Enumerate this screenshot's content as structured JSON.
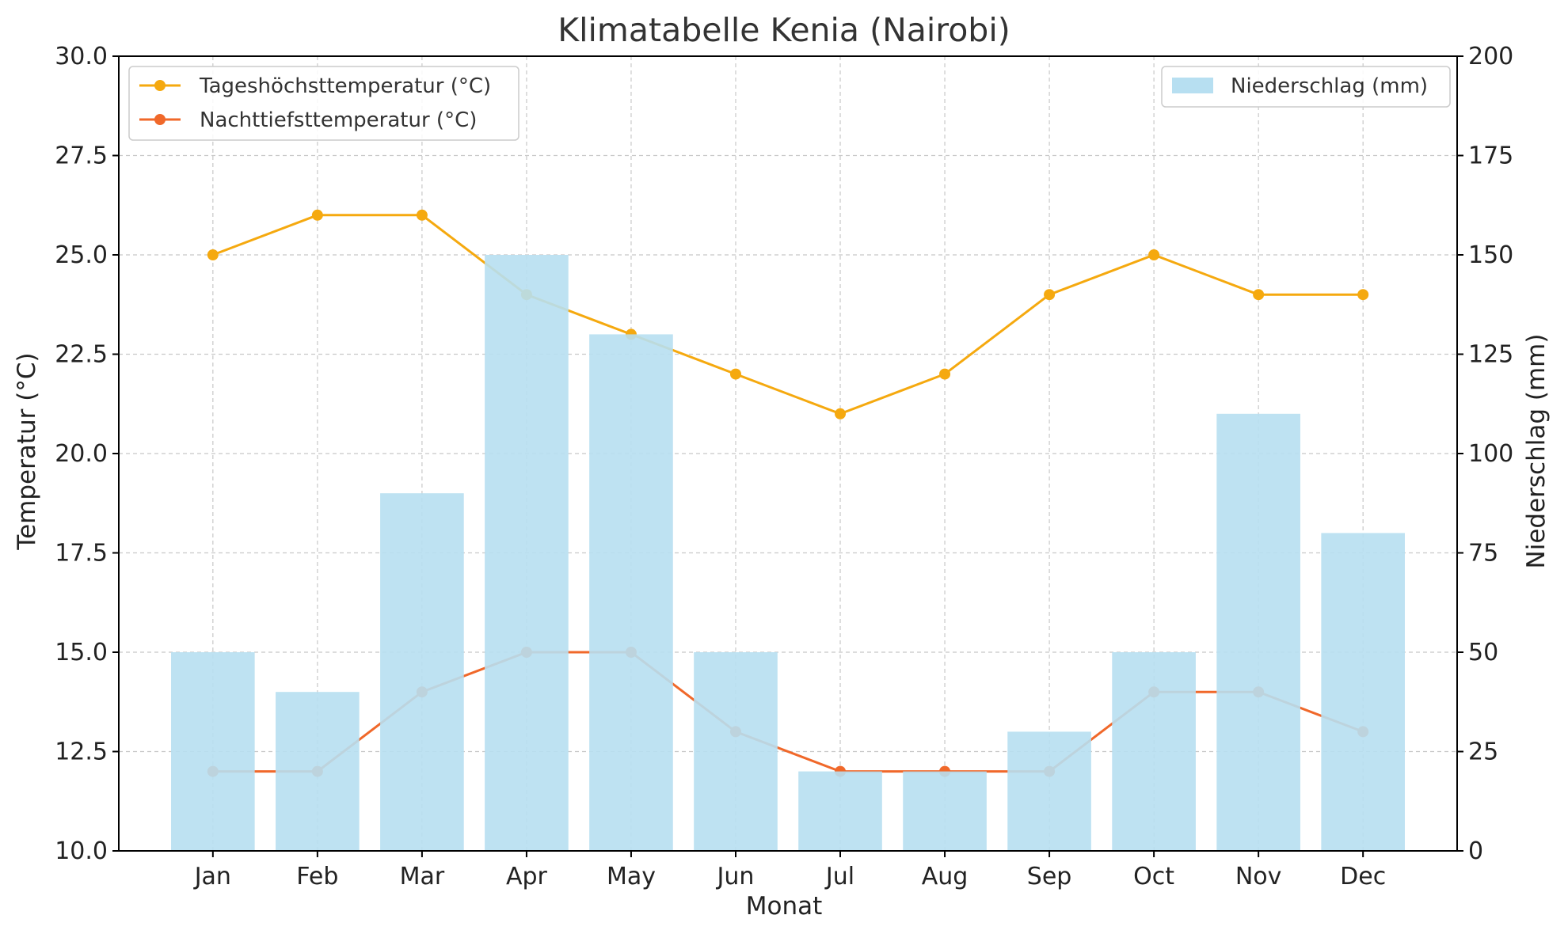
{
  "chart_data": {
    "type": "bar+line",
    "title": "Klimatabelle Kenia (Nairobi)",
    "xlabel": "Monat",
    "ylabel_left": "Temperatur (°C)",
    "ylabel_right": "Niederschlag (mm)",
    "categories": [
      "Jan",
      "Feb",
      "Mar",
      "Apr",
      "May",
      "Jun",
      "Jul",
      "Aug",
      "Sep",
      "Oct",
      "Nov",
      "Dec"
    ],
    "ylim_left": [
      10,
      30
    ],
    "ylim_right": [
      0,
      200
    ],
    "yticks_left": [
      "10.0",
      "12.5",
      "15.0",
      "17.5",
      "20.0",
      "22.5",
      "25.0",
      "27.5",
      "30.0"
    ],
    "yticks_right": [
      "0",
      "25",
      "50",
      "75",
      "100",
      "125",
      "150",
      "175",
      "200"
    ],
    "grid": true,
    "series": [
      {
        "name": "Tageshöchsttemperatur (°C)",
        "type": "line",
        "axis": "left",
        "color": "#f5a90f",
        "values": [
          25,
          26,
          26,
          24,
          23,
          22,
          21,
          22,
          24,
          25,
          24,
          24
        ]
      },
      {
        "name": "Nachttiefsttemperatur (°C)",
        "type": "line",
        "axis": "left",
        "color": "#f0682a",
        "values": [
          12,
          12,
          14,
          15,
          15,
          13,
          12,
          12,
          12,
          14,
          14,
          13
        ]
      },
      {
        "name": "Niederschlag (mm)",
        "type": "bar",
        "axis": "right",
        "color": "#b7dff1",
        "values": [
          50,
          40,
          90,
          150,
          130,
          50,
          20,
          20,
          30,
          50,
          110,
          80
        ]
      }
    ],
    "legend_left_position": "upper-left",
    "legend_right_position": "upper-right"
  }
}
